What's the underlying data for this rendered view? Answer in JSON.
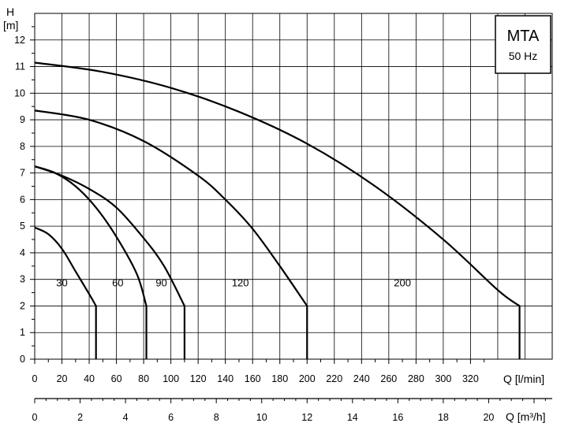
{
  "chart_data": {
    "type": "line",
    "title": "",
    "legend_box": {
      "title": "MTA",
      "subtitle": "50 Hz",
      "placement": "top-right"
    },
    "ylabel": "H",
    "yunit": "[m]",
    "xlabel": "Q [l/min]",
    "x2label": "Q [m³/h]",
    "xlim": [
      0,
      380
    ],
    "ylim": [
      0,
      13
    ],
    "x_ticks": [
      0,
      20,
      40,
      60,
      80,
      100,
      120,
      140,
      160,
      180,
      200,
      220,
      240,
      260,
      280,
      300,
      320
    ],
    "y_ticks": [
      0,
      1,
      2,
      3,
      4,
      5,
      6,
      7,
      8,
      9,
      10,
      11,
      12
    ],
    "x2_ticks": [
      0,
      2,
      4,
      6,
      8,
      10,
      12,
      14,
      16,
      18,
      20
    ],
    "grid": true,
    "series": [
      {
        "name": "30",
        "x": [
          0,
          10,
          20,
          30,
          40,
          45,
          45
        ],
        "y": [
          4.95,
          4.7,
          4.15,
          3.3,
          2.45,
          2.0,
          0
        ],
        "label_at": [
          20,
          2.5
        ]
      },
      {
        "name": "60",
        "x": [
          0,
          15,
          30,
          45,
          60,
          75,
          82,
          82
        ],
        "y": [
          7.25,
          7.0,
          6.5,
          5.7,
          4.6,
          3.2,
          2.0,
          0
        ],
        "label_at": [
          61,
          2.5
        ]
      },
      {
        "name": "90",
        "x": [
          0,
          20,
          40,
          60,
          80,
          95,
          110,
          110
        ],
        "y": [
          7.25,
          6.9,
          6.4,
          5.7,
          4.55,
          3.5,
          2.0,
          0
        ],
        "label_at": [
          93,
          2.5
        ]
      },
      {
        "name": "120",
        "x": [
          0,
          40,
          80,
          120,
          140,
          160,
          180,
          200,
          200
        ],
        "y": [
          9.35,
          9.0,
          8.2,
          6.9,
          6.0,
          4.9,
          3.5,
          2.0,
          0
        ],
        "label_at": [
          151,
          2.5
        ]
      },
      {
        "name": "200",
        "x": [
          0,
          50,
          100,
          150,
          200,
          250,
          300,
          340,
          356,
          356
        ],
        "y": [
          11.15,
          10.8,
          10.2,
          9.3,
          8.1,
          6.5,
          4.5,
          2.6,
          2.0,
          0
        ],
        "label_at": [
          270,
          2.5
        ]
      }
    ]
  }
}
